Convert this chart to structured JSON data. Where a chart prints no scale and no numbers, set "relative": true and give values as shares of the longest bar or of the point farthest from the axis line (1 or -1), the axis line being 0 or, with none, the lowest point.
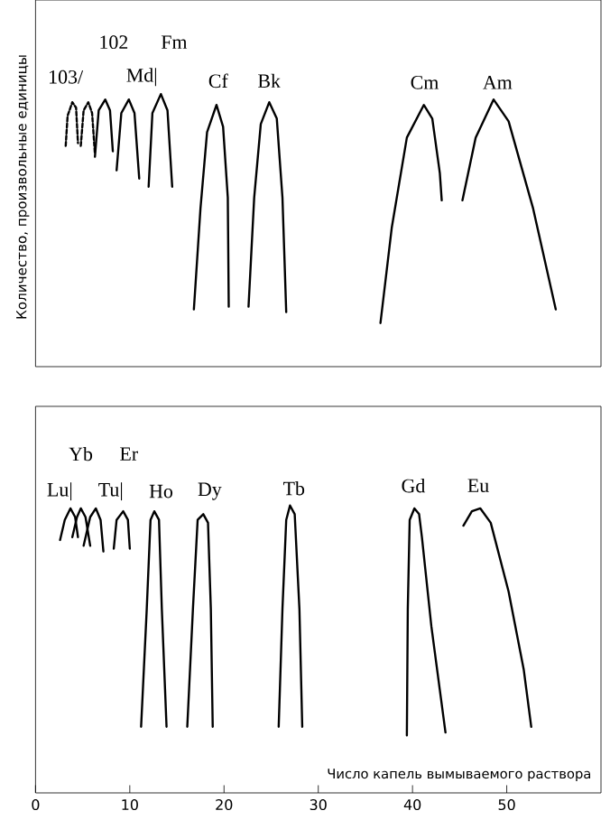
{
  "chart_data": [
    {
      "type": "line",
      "relative": true,
      "ylabel": "Количество, произвольные единицы",
      "xlim": [
        0,
        60
      ],
      "tick_labels": false,
      "series": [
        {
          "color": "#000000",
          "line_style": "dashed",
          "x": [
            3.2,
            3.4,
            3.9,
            4.3,
            4.5
          ],
          "values": [
            0.81,
            0.92,
            0.97,
            0.95,
            0.82
          ]
        },
        {
          "color": "#000000",
          "line_style": "dashed",
          "x": [
            4.8,
            5.1,
            5.6,
            6.0,
            6.3
          ],
          "values": [
            0.81,
            0.94,
            0.97,
            0.93,
            0.78
          ]
        },
        {
          "color": "#000000",
          "line_style": "solid",
          "x": [
            6.3,
            6.7,
            7.4,
            7.9,
            8.2
          ],
          "values": [
            0.77,
            0.94,
            0.98,
            0.94,
            0.79
          ]
        },
        {
          "color": "#000000",
          "line_style": "solid",
          "x": [
            8.6,
            9.1,
            9.9,
            10.5,
            11.0
          ],
          "values": [
            0.72,
            0.93,
            0.98,
            0.93,
            0.69
          ]
        },
        {
          "color": "#000000",
          "line_style": "solid",
          "x": [
            12.0,
            12.4,
            13.3,
            14.0,
            14.5
          ],
          "values": [
            0.66,
            0.93,
            1.0,
            0.94,
            0.66
          ]
        },
        {
          "color": "#000000",
          "line_style": "solid",
          "x": [
            16.8,
            17.5,
            18.2,
            19.2,
            19.9,
            20.4,
            20.5
          ],
          "values": [
            0.21,
            0.58,
            0.86,
            0.96,
            0.88,
            0.62,
            0.22
          ]
        },
        {
          "color": "#000000",
          "line_style": "solid",
          "x": [
            22.6,
            23.2,
            23.9,
            24.8,
            25.6,
            26.2,
            26.6
          ],
          "values": [
            0.22,
            0.62,
            0.89,
            0.97,
            0.91,
            0.62,
            0.2
          ]
        },
        {
          "color": "#000000",
          "line_style": "solid",
          "x": [
            36.6,
            37.8,
            39.4,
            41.2,
            42.1,
            42.9,
            43.1
          ],
          "values": [
            0.16,
            0.51,
            0.84,
            0.96,
            0.91,
            0.71,
            0.61
          ]
        },
        {
          "color": "#000000",
          "line_style": "solid",
          "x": [
            45.3,
            46.7,
            48.6,
            50.2,
            52.8,
            55.2
          ],
          "values": [
            0.61,
            0.84,
            0.98,
            0.9,
            0.58,
            0.21
          ]
        }
      ],
      "annotations": [
        "103/",
        "Md|",
        "102",
        "Fm",
        "Cf",
        "Bk",
        "Cm",
        "Am"
      ]
    },
    {
      "type": "line",
      "relative": true,
      "xlabel": "Число капель вымываемого раствора",
      "xlim": [
        0,
        60
      ],
      "xticks": [
        0,
        10,
        20,
        30,
        40,
        50
      ],
      "tick_labels": "x",
      "series": [
        {
          "color": "#000000",
          "line_style": "solid",
          "x": [
            2.6,
            3.1,
            3.7,
            4.2,
            4.5
          ],
          "values": [
            0.88,
            0.95,
            0.99,
            0.96,
            0.89
          ]
        },
        {
          "color": "#000000",
          "line_style": "solid",
          "x": [
            3.9,
            4.4,
            4.8,
            5.3,
            5.8
          ],
          "values": [
            0.89,
            0.96,
            0.99,
            0.96,
            0.86
          ]
        },
        {
          "color": "#000000",
          "line_style": "solid",
          "x": [
            5.1,
            5.8,
            6.4,
            6.9,
            7.2
          ],
          "values": [
            0.86,
            0.96,
            0.99,
            0.95,
            0.84
          ]
        },
        {
          "color": "#000000",
          "line_style": "solid",
          "x": [
            8.3,
            8.6,
            9.3,
            9.8,
            10.0
          ],
          "values": [
            0.85,
            0.95,
            0.98,
            0.95,
            0.85
          ]
        },
        {
          "color": "#000000",
          "line_style": "solid",
          "x": [
            11.2,
            11.8,
            12.2,
            12.6,
            13.1,
            13.4,
            13.9
          ],
          "values": [
            0.23,
            0.64,
            0.95,
            0.98,
            0.95,
            0.64,
            0.23
          ]
        },
        {
          "color": "#000000",
          "line_style": "solid",
          "x": [
            16.1,
            16.7,
            17.2,
            17.8,
            18.3,
            18.6,
            18.8
          ],
          "values": [
            0.23,
            0.64,
            0.95,
            0.97,
            0.94,
            0.64,
            0.23
          ]
        },
        {
          "color": "#000000",
          "line_style": "solid",
          "x": [
            25.8,
            26.2,
            26.6,
            27.0,
            27.5,
            28.0,
            28.3
          ],
          "values": [
            0.23,
            0.64,
            0.95,
            1.0,
            0.97,
            0.64,
            0.23
          ]
        },
        {
          "color": "#000000",
          "line_style": "solid",
          "x": [
            39.4,
            39.5,
            39.7,
            40.2,
            40.7,
            41.0,
            42.0,
            43.5
          ],
          "values": [
            0.2,
            0.64,
            0.95,
            0.99,
            0.97,
            0.89,
            0.58,
            0.21
          ]
        },
        {
          "color": "#000000",
          "line_style": "solid",
          "x": [
            45.4,
            46.3,
            47.2,
            48.3,
            50.2,
            51.8,
            52.6
          ],
          "values": [
            0.93,
            0.98,
            0.99,
            0.94,
            0.7,
            0.43,
            0.23
          ]
        }
      ],
      "annotations": [
        "Lu|",
        "Yb",
        "Tu|",
        "Er",
        "Ho",
        "Dy",
        "Tb",
        "Gd",
        "Eu"
      ]
    }
  ]
}
